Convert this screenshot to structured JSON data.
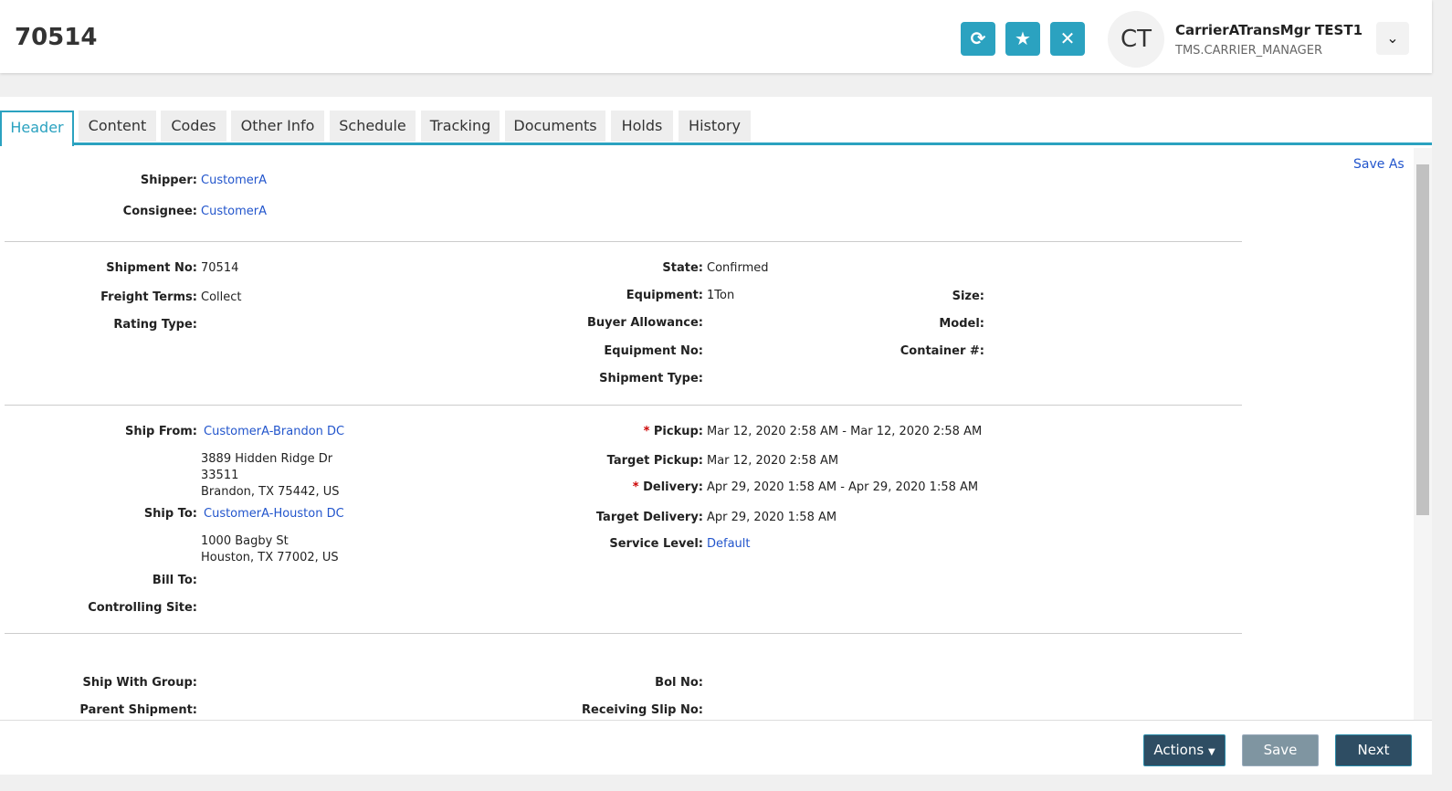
{
  "header": {
    "title": "70514",
    "user_initials": "CT",
    "user_name": "CarrierATransMgr TEST1",
    "user_role": "TMS.CARRIER_MANAGER"
  },
  "tabs": [
    "Header",
    "Content",
    "Codes",
    "Other Info",
    "Schedule",
    "Tracking",
    "Documents",
    "Holds",
    "History"
  ],
  "save_as": "Save As",
  "parties": {
    "shipper_label": "Shipper:",
    "shipper": "CustomerA",
    "consignee_label": "Consignee:",
    "consignee": "CustomerA"
  },
  "info": {
    "shipment_no_label": "Shipment No:",
    "shipment_no": "70514",
    "freight_terms_label": "Freight Terms:",
    "freight_terms": "Collect",
    "rating_type_label": "Rating Type:",
    "state_label": "State:",
    "state": "Confirmed",
    "equipment_label": "Equipment:",
    "equipment": "1Ton",
    "buyer_allowance_label": "Buyer Allowance:",
    "equipment_no_label": "Equipment No:",
    "shipment_type_label": "Shipment Type:",
    "size_label": "Size:",
    "model_label": "Model:",
    "container_label": "Container #:"
  },
  "route": {
    "ship_from_label": "Ship From:",
    "ship_from": "CustomerA-Brandon DC",
    "ship_from_addr": [
      "3889 Hidden Ridge Dr",
      "33511",
      "Brandon, TX 75442, US"
    ],
    "ship_to_label": "Ship To:",
    "ship_to": "CustomerA-Houston DC",
    "ship_to_addr": [
      "1000 Bagby St",
      "Houston, TX 77002, US"
    ],
    "bill_to_label": "Bill To:",
    "controlling_site_label": "Controlling Site:",
    "pickup_label": "Pickup:",
    "pickup": "Mar 12, 2020 2:58 AM - Mar 12, 2020 2:58 AM",
    "target_pickup_label": "Target Pickup:",
    "target_pickup": "Mar 12, 2020 2:58 AM",
    "delivery_label": "Delivery:",
    "delivery": "Apr 29, 2020 1:58 AM - Apr 29, 2020 1:58 AM",
    "target_delivery_label": "Target Delivery:",
    "target_delivery": "Apr 29, 2020 1:58 AM",
    "service_level_label": "Service Level:",
    "service_level": "Default"
  },
  "other": {
    "ship_with_group_label": "Ship With Group:",
    "parent_shipment_label": "Parent Shipment:",
    "bol_no_label": "Bol No:",
    "receiving_slip_label": "Receiving Slip No:"
  },
  "footer": {
    "actions": "Actions",
    "save": "Save",
    "next": "Next"
  }
}
